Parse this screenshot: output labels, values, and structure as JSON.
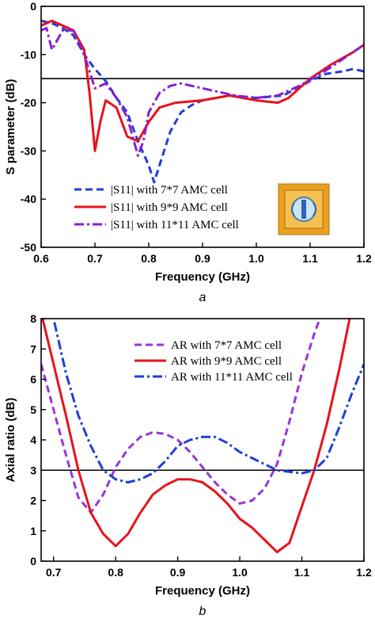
{
  "captions": [
    "a",
    "b"
  ],
  "chart_data": [
    {
      "type": "line",
      "xlabel": "Frequency (GHz)",
      "ylabel": "S parameter (dB)",
      "xlim": [
        0.6,
        1.2
      ],
      "ylim": [
        -50,
        0
      ],
      "xticks": [
        "0.6",
        "0.7",
        "0.8",
        "0.9",
        "1.0",
        "1.1",
        "1.2"
      ],
      "yticks": [
        "0",
        "-10",
        "-20",
        "-30",
        "-40",
        "-50"
      ],
      "reference_line_y": -15,
      "legend_position": "bottom-left",
      "inset_image": "AMC unit cell photo",
      "series": [
        {
          "name": "|S11| with 7*7 AMC cell",
          "color": "#1f3fd6",
          "dash": "dashed",
          "points": [
            [
              0.6,
              -3
            ],
            [
              0.62,
              -3.5
            ],
            [
              0.64,
              -4.5
            ],
            [
              0.66,
              -6
            ],
            [
              0.68,
              -10
            ],
            [
              0.7,
              -13
            ],
            [
              0.72,
              -15.5
            ],
            [
              0.74,
              -19
            ],
            [
              0.76,
              -22
            ],
            [
              0.78,
              -28
            ],
            [
              0.8,
              -33
            ],
            [
              0.81,
              -36.5
            ],
            [
              0.82,
              -33
            ],
            [
              0.84,
              -26
            ],
            [
              0.86,
              -22
            ],
            [
              0.88,
              -20.5
            ],
            [
              0.9,
              -19.5
            ],
            [
              0.95,
              -18.5
            ],
            [
              1.0,
              -19
            ],
            [
              1.05,
              -18.5
            ],
            [
              1.1,
              -15.5
            ],
            [
              1.13,
              -14
            ],
            [
              1.16,
              -13.5
            ],
            [
              1.18,
              -13
            ],
            [
              1.2,
              -13.5
            ]
          ]
        },
        {
          "name": "|S11| with 9*9 AMC cell",
          "color": "#e8121b",
          "dash": "solid",
          "points": [
            [
              0.6,
              -4
            ],
            [
              0.62,
              -3
            ],
            [
              0.64,
              -4
            ],
            [
              0.66,
              -5
            ],
            [
              0.68,
              -9
            ],
            [
              0.69,
              -18
            ],
            [
              0.7,
              -30
            ],
            [
              0.71,
              -24
            ],
            [
              0.72,
              -19.5
            ],
            [
              0.74,
              -21
            ],
            [
              0.76,
              -27
            ],
            [
              0.78,
              -28
            ],
            [
              0.8,
              -24
            ],
            [
              0.82,
              -21
            ],
            [
              0.85,
              -20
            ],
            [
              0.9,
              -19.5
            ],
            [
              0.95,
              -18.5
            ],
            [
              1.0,
              -19.5
            ],
            [
              1.04,
              -20
            ],
            [
              1.06,
              -19
            ],
            [
              1.1,
              -15
            ],
            [
              1.14,
              -12
            ],
            [
              1.18,
              -9.5
            ],
            [
              1.2,
              -8
            ]
          ]
        },
        {
          "name": "|S11| with 11*11 AMC cell",
          "color": "#8a1fd0",
          "dash": "dashdot",
          "points": [
            [
              0.6,
              -5
            ],
            [
              0.61,
              -4.5
            ],
            [
              0.62,
              -9
            ],
            [
              0.63,
              -7
            ],
            [
              0.64,
              -5
            ],
            [
              0.66,
              -5
            ],
            [
              0.68,
              -10
            ],
            [
              0.7,
              -17
            ],
            [
              0.72,
              -16
            ],
            [
              0.74,
              -19
            ],
            [
              0.76,
              -23
            ],
            [
              0.78,
              -31
            ],
            [
              0.79,
              -28
            ],
            [
              0.8,
              -22
            ],
            [
              0.82,
              -18
            ],
            [
              0.84,
              -16.5
            ],
            [
              0.86,
              -16
            ],
            [
              0.88,
              -16.5
            ],
            [
              0.92,
              -17.5
            ],
            [
              0.96,
              -18.5
            ],
            [
              1.0,
              -19
            ],
            [
              1.04,
              -18.5
            ],
            [
              1.08,
              -16.5
            ],
            [
              1.12,
              -14
            ],
            [
              1.16,
              -11
            ],
            [
              1.2,
              -8
            ]
          ]
        }
      ]
    },
    {
      "type": "line",
      "xlabel": "Frequency (GHz)",
      "ylabel": "Axial ratio (dB)",
      "xlim": [
        0.68,
        1.2
      ],
      "ylim": [
        0,
        8
      ],
      "xticks": [
        "0.7",
        "0.8",
        "0.9",
        "1.0",
        "1.1",
        "1.2"
      ],
      "yticks": [
        "0",
        "1",
        "2",
        "3",
        "4",
        "5",
        "6",
        "7",
        "8"
      ],
      "reference_line_y": 3,
      "legend_position": "top-center",
      "series": [
        {
          "name": "AR with 7*7 AMC cell",
          "color": "#9a35d6",
          "dash": "dashed",
          "points": [
            [
              0.68,
              6.5
            ],
            [
              0.7,
              5
            ],
            [
              0.72,
              3.5
            ],
            [
              0.74,
              2.1
            ],
            [
              0.76,
              1.6
            ],
            [
              0.78,
              2.2
            ],
            [
              0.8,
              3.1
            ],
            [
              0.82,
              3.7
            ],
            [
              0.84,
              4.1
            ],
            [
              0.86,
              4.25
            ],
            [
              0.88,
              4.2
            ],
            [
              0.9,
              4
            ],
            [
              0.92,
              3.6
            ],
            [
              0.94,
              3.1
            ],
            [
              0.96,
              2.6
            ],
            [
              0.98,
              2.2
            ],
            [
              1.0,
              1.9
            ],
            [
              1.02,
              2
            ],
            [
              1.04,
              2.4
            ],
            [
              1.06,
              3.2
            ],
            [
              1.08,
              4.6
            ],
            [
              1.1,
              6.2
            ],
            [
              1.12,
              7.5
            ],
            [
              1.14,
              8.6
            ]
          ]
        },
        {
          "name": "AR with 9*9 AMC cell",
          "color": "#e8121b",
          "dash": "solid",
          "points": [
            [
              0.68,
              8.2
            ],
            [
              0.7,
              6.5
            ],
            [
              0.72,
              4.8
            ],
            [
              0.74,
              3
            ],
            [
              0.76,
              1.6
            ],
            [
              0.78,
              0.9
            ],
            [
              0.8,
              0.5
            ],
            [
              0.82,
              0.9
            ],
            [
              0.84,
              1.6
            ],
            [
              0.86,
              2.2
            ],
            [
              0.88,
              2.5
            ],
            [
              0.9,
              2.7
            ],
            [
              0.92,
              2.7
            ],
            [
              0.94,
              2.6
            ],
            [
              0.96,
              2.3
            ],
            [
              0.98,
              1.9
            ],
            [
              1.0,
              1.4
            ],
            [
              1.02,
              1.1
            ],
            [
              1.04,
              0.7
            ],
            [
              1.06,
              0.3
            ],
            [
              1.08,
              0.6
            ],
            [
              1.1,
              1.8
            ],
            [
              1.12,
              3
            ],
            [
              1.14,
              4.5
            ],
            [
              1.16,
              6.3
            ],
            [
              1.18,
              8.3
            ]
          ]
        },
        {
          "name": "AR with 11*11 AMC cell",
          "color": "#1f3fd6",
          "dash": "dashdot",
          "points": [
            [
              0.68,
              9
            ],
            [
              0.7,
              8
            ],
            [
              0.72,
              6.2
            ],
            [
              0.74,
              4.8
            ],
            [
              0.76,
              3.8
            ],
            [
              0.78,
              3
            ],
            [
              0.8,
              2.7
            ],
            [
              0.82,
              2.6
            ],
            [
              0.84,
              2.7
            ],
            [
              0.86,
              2.9
            ],
            [
              0.88,
              3.3
            ],
            [
              0.9,
              3.8
            ],
            [
              0.92,
              4
            ],
            [
              0.94,
              4.1
            ],
            [
              0.96,
              4.1
            ],
            [
              0.98,
              3.9
            ],
            [
              1.0,
              3.6
            ],
            [
              1.02,
              3.4
            ],
            [
              1.04,
              3.2
            ],
            [
              1.06,
              3
            ],
            [
              1.08,
              2.95
            ],
            [
              1.1,
              2.9
            ],
            [
              1.12,
              3
            ],
            [
              1.14,
              3.4
            ],
            [
              1.16,
              4.4
            ],
            [
              1.18,
              5.5
            ],
            [
              1.2,
              6.5
            ]
          ]
        }
      ]
    }
  ]
}
